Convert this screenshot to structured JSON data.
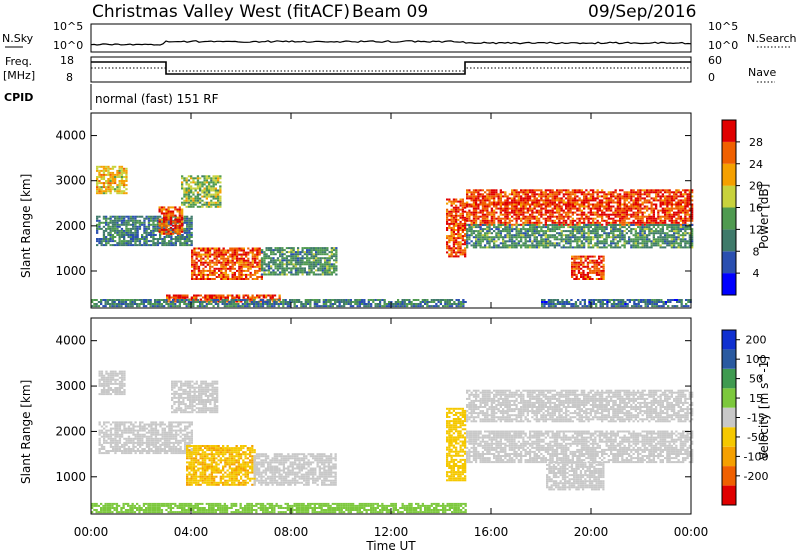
{
  "header": {
    "station": "Christmas Valley West (fitACF)",
    "beam": "Beam 09",
    "date": "09/Sep/2016"
  },
  "strips": {
    "nsky_label": "N.Sky",
    "nsky_tick_top": "10^5",
    "nsky_tick_bottom": "10^0",
    "nsearch_label": "N.Search",
    "nsearch_tick_top": "10^5",
    "nsearch_tick_bottom": "10^0",
    "freq_label_1": "Freq.",
    "freq_label_2": "[MHz]",
    "freq_tick_top": "18",
    "freq_tick_bottom": "8",
    "nave_label": "Nave",
    "nave_tick_top": "60",
    "nave_tick_bottom": "0",
    "cpid_label": "CPID",
    "cpid_text": "normal (fast) 151 RF"
  },
  "colors": {
    "power": [
      "#0000ff",
      "#2a4fb0",
      "#3f7a6a",
      "#4f9a50",
      "#c8d23c",
      "#f5a000",
      "#f06000",
      "#e00000"
    ],
    "velocity": [
      "#e00000",
      "#f06000",
      "#f5a000",
      "#f5c800",
      "#c8c8c8",
      "#7cc83c",
      "#3f9a50",
      "#2a5aa0",
      "#1030d0"
    ]
  },
  "chart_data": [
    {
      "type": "heatmap",
      "parameter": "power",
      "ylabel": "Slant Range [km]",
      "x_ticks": [
        "00:00",
        "04:00",
        "08:00",
        "12:00",
        "16:00",
        "20:00",
        "00:00"
      ],
      "y_ticks": [
        "1000",
        "2000",
        "3000",
        "4000"
      ],
      "ylim": [
        180,
        4500
      ],
      "colorbar_label": "Power [dB]",
      "colorbar_ticks": [
        "4",
        "8",
        "12",
        "16",
        "20",
        "24",
        "28"
      ],
      "regions": [
        {
          "t0": 0.2,
          "t1": 1.4,
          "r0": 2700,
          "r1": 3300,
          "v": 20
        },
        {
          "t0": 0.2,
          "t1": 4.0,
          "r0": 1550,
          "r1": 2200,
          "v": 10
        },
        {
          "t0": 2.7,
          "t1": 3.6,
          "r0": 1800,
          "r1": 2400,
          "v": 27
        },
        {
          "t0": 3.6,
          "t1": 5.2,
          "r0": 2400,
          "r1": 3100,
          "v": 16
        },
        {
          "t0": 4.0,
          "t1": 6.8,
          "r0": 800,
          "r1": 1500,
          "v": 27
        },
        {
          "t0": 6.8,
          "t1": 9.8,
          "r0": 900,
          "r1": 1500,
          "v": 12
        },
        {
          "t0": 3.0,
          "t1": 7.5,
          "r0": 300,
          "r1": 450,
          "v": 28
        },
        {
          "t0": 0.0,
          "t1": 15.0,
          "r0": 200,
          "r1": 380,
          "v": 10
        },
        {
          "t0": 14.2,
          "t1": 15.0,
          "r0": 1300,
          "r1": 2600,
          "v": 27
        },
        {
          "t0": 15.0,
          "t1": 24.0,
          "r0": 2000,
          "r1": 2800,
          "v": 28
        },
        {
          "t0": 15.0,
          "t1": 24.0,
          "r0": 1500,
          "r1": 2000,
          "v": 12
        },
        {
          "t0": 19.2,
          "t1": 20.5,
          "r0": 800,
          "r1": 1300,
          "v": 28
        },
        {
          "t0": 18.0,
          "t1": 24.0,
          "r0": 200,
          "r1": 380,
          "v": 8
        }
      ]
    },
    {
      "type": "heatmap",
      "parameter": "velocity",
      "xlabel": "Time UT",
      "ylabel": "Slant Range [km]",
      "x_ticks": [
        "00:00",
        "04:00",
        "08:00",
        "12:00",
        "16:00",
        "20:00",
        "00:00"
      ],
      "y_ticks": [
        "1000",
        "2000",
        "3000",
        "4000"
      ],
      "ylim": [
        180,
        4500
      ],
      "colorbar_label": "Velocity [m s^-1]",
      "colorbar_ticks": [
        "200",
        "100",
        "50",
        "15",
        "-15",
        "-50",
        "-100",
        "-200"
      ],
      "regions": [
        {
          "t0": 0.3,
          "t1": 1.3,
          "r0": 2800,
          "r1": 3300,
          "v": 0
        },
        {
          "t0": 0.3,
          "t1": 4.0,
          "r0": 1500,
          "r1": 2200,
          "v": 0
        },
        {
          "t0": 3.2,
          "t1": 5.0,
          "r0": 2400,
          "r1": 3100,
          "v": 0
        },
        {
          "t0": 3.8,
          "t1": 6.5,
          "r0": 800,
          "r1": 1700,
          "v": -45
        },
        {
          "t0": 6.5,
          "t1": 9.8,
          "r0": 800,
          "r1": 1500,
          "v": 0
        },
        {
          "t0": 0.0,
          "t1": 15.0,
          "r0": 200,
          "r1": 420,
          "v": 30
        },
        {
          "t0": 14.2,
          "t1": 15.0,
          "r0": 900,
          "r1": 2500,
          "v": -30
        },
        {
          "t0": 15.0,
          "t1": 24.0,
          "r0": 2200,
          "r1": 2900,
          "v": 0
        },
        {
          "t0": 15.0,
          "t1": 24.0,
          "r0": 1300,
          "r1": 2000,
          "v": 0
        },
        {
          "t0": 18.2,
          "t1": 20.5,
          "r0": 700,
          "r1": 1300,
          "v": 0
        }
      ]
    }
  ]
}
